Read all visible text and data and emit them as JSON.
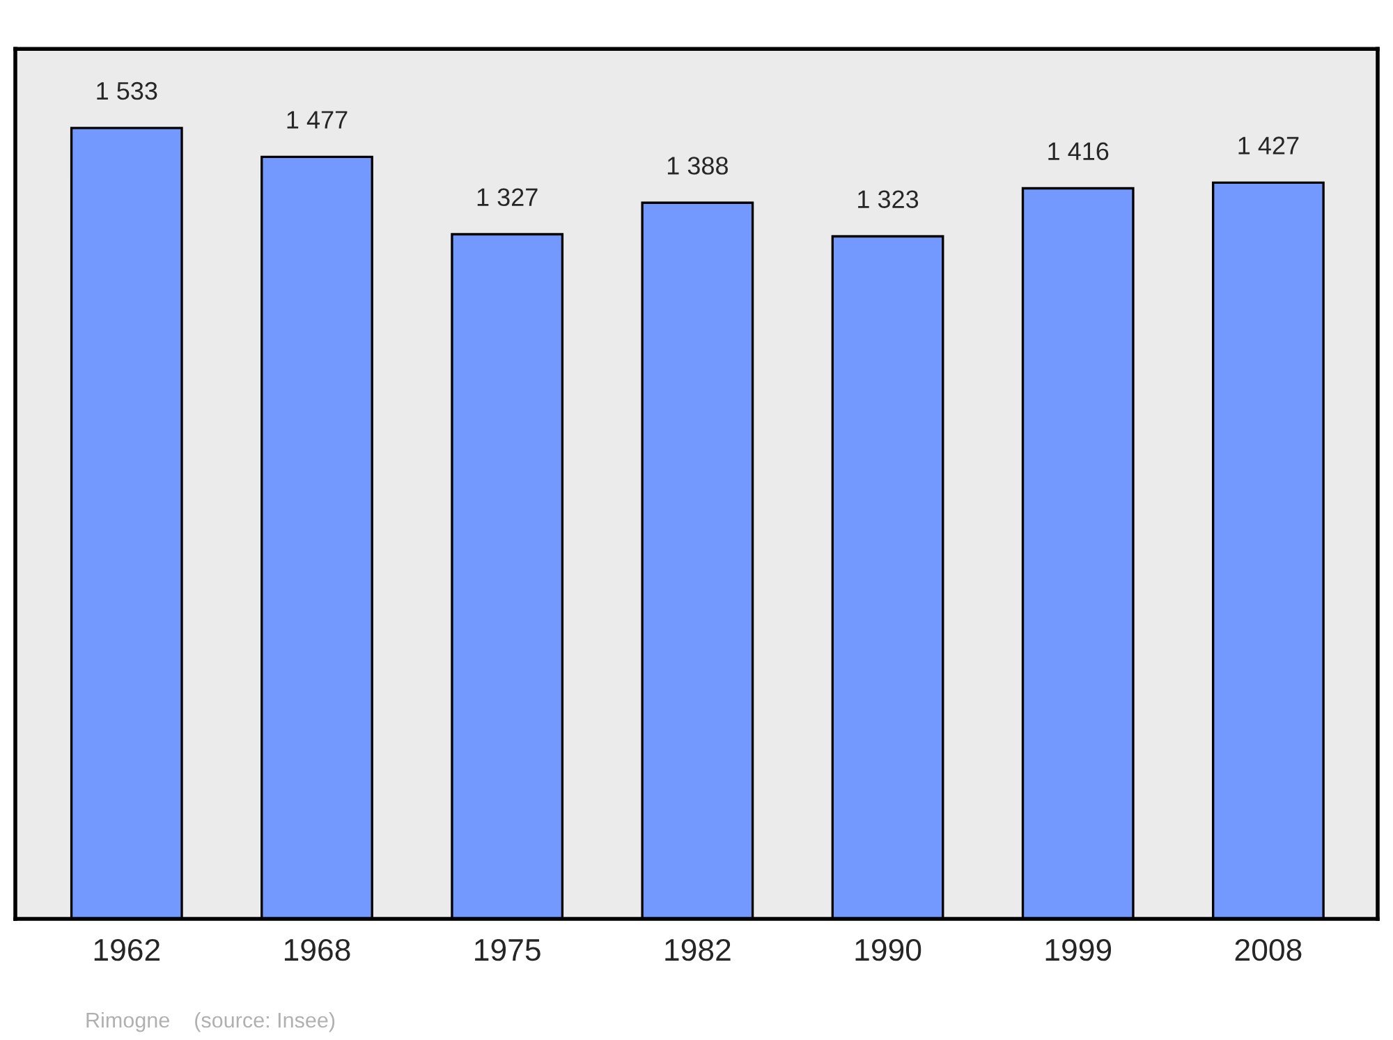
{
  "chart_data": {
    "type": "bar",
    "categories": [
      "1962",
      "1968",
      "1975",
      "1982",
      "1990",
      "1999",
      "2008"
    ],
    "values": [
      1533,
      1477,
      1327,
      1388,
      1323,
      1416,
      1427
    ],
    "value_labels": [
      "1 533",
      "1 477",
      "1 327",
      "1 388",
      "1 323",
      "1 416",
      "1 427"
    ],
    "color": "#7399ff",
    "annotations": [
      "Rimogne    (source: Insee)"
    ]
  }
}
